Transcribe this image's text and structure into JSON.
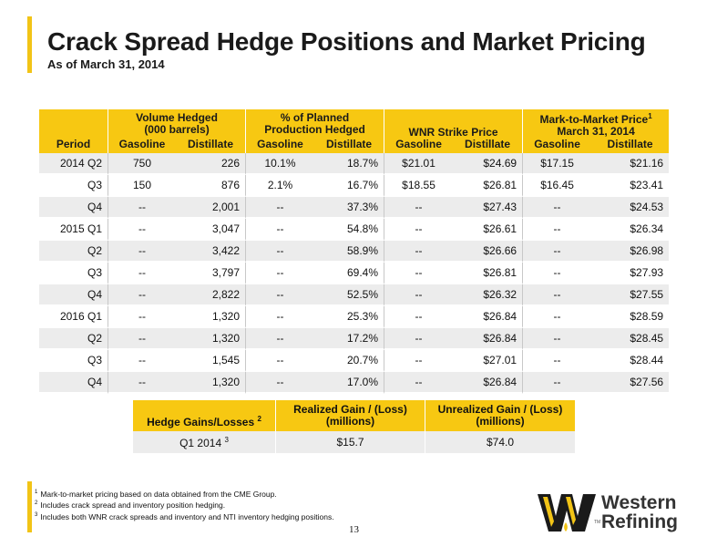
{
  "header": {
    "title": "Crack Spread Hedge Positions and Market Pricing",
    "subtitle": "As of March 31, 2014"
  },
  "main_table": {
    "groups": {
      "period": "",
      "volume_line1": "Volume Hedged",
      "volume_line2": "(000 barrels)",
      "planned_line1": "% of Planned",
      "planned_line2": "Production Hedged",
      "strike": "WNR Strike Price",
      "mtm_line1": "Mark-to-Market Price",
      "mtm_sup": "1",
      "mtm_line2": "March 31, 2014"
    },
    "columns": [
      "Period",
      "Gasoline",
      "Distillate",
      "Gasoline",
      "Distillate",
      "Gasoline",
      "Distillate",
      "Gasoline",
      "Distillate"
    ],
    "rows": [
      [
        "2014  Q2",
        "750",
        "226",
        "10.1%",
        "18.7%",
        "$21.01",
        "$24.69",
        "$17.15",
        "$21.16"
      ],
      [
        "Q3",
        "150",
        "876",
        "2.1%",
        "16.7%",
        "$18.55",
        "$26.81",
        "$16.45",
        "$23.41"
      ],
      [
        "Q4",
        "--",
        "2,001",
        "--",
        "37.3%",
        "--",
        "$27.43",
        "--",
        "$24.53"
      ],
      [
        "2015  Q1",
        "--",
        "3,047",
        "--",
        "54.8%",
        "--",
        "$26.61",
        "--",
        "$26.34"
      ],
      [
        "Q2",
        "--",
        "3,422",
        "--",
        "58.9%",
        "--",
        "$26.66",
        "--",
        "$26.98"
      ],
      [
        "Q3",
        "--",
        "3,797",
        "--",
        "69.4%",
        "--",
        "$26.81",
        "--",
        "$27.93"
      ],
      [
        "Q4",
        "--",
        "2,822",
        "--",
        "52.5%",
        "--",
        "$26.32",
        "--",
        "$27.55"
      ],
      [
        "2016  Q1",
        "--",
        "1,320",
        "--",
        "25.3%",
        "--",
        "$26.84",
        "--",
        "$28.59"
      ],
      [
        "Q2",
        "--",
        "1,320",
        "--",
        "17.2%",
        "--",
        "$26.84",
        "--",
        "$28.45"
      ],
      [
        "Q3",
        "--",
        "1,545",
        "--",
        "20.7%",
        "--",
        "$27.01",
        "--",
        "$28.44"
      ],
      [
        "Q4",
        "--",
        "1,320",
        "--",
        "17.0%",
        "--",
        "$26.84",
        "--",
        "$27.56"
      ]
    ]
  },
  "hedge_table": {
    "col1_label": "Hedge Gains/Losses",
    "col1_sup": "2",
    "col2_line1": "Realized Gain / (Loss)",
    "col2_line2": "(millions)",
    "col3_line1": "Unrealized Gain / (Loss)",
    "col3_line2": "(millions)",
    "row_label": "Q1 2014",
    "row_sup": "3",
    "realized": "$15.7",
    "unrealized": "$74.0"
  },
  "footnotes": [
    {
      "num": "1",
      "text": "Mark-to-market pricing based on data obtained from the CME Group."
    },
    {
      "num": "2",
      "text": "Includes crack spread and inventory position hedging."
    },
    {
      "num": "3",
      "text": "Includes both WNR crack spreads and inventory and NTI inventory hedging positions."
    }
  ],
  "page_number": "13",
  "logo": {
    "line1": "Western",
    "line2": "Refining",
    "tm": "TM",
    "icon": "western-refining-w-icon"
  },
  "colors": {
    "accent": "#f7c812",
    "row_shade": "#ececec",
    "text": "#1a1a1a"
  }
}
